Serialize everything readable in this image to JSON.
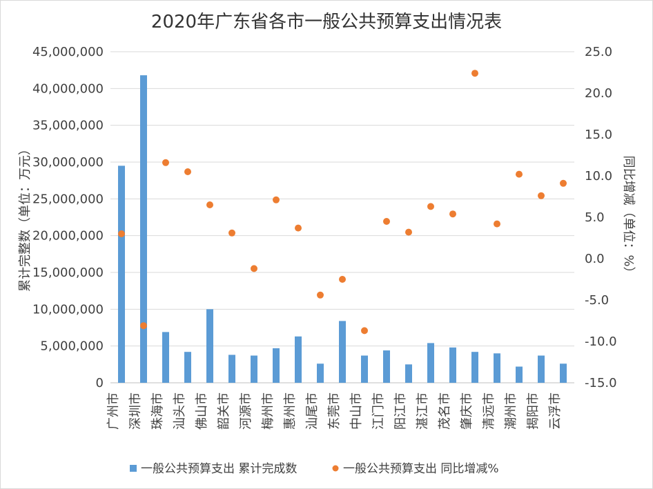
{
  "chart_data": {
    "type": "bar+scatter",
    "title": "2020年广东省各市一般公共预算支出情况表",
    "categories": [
      "广州市",
      "深圳市",
      "珠海市",
      "汕头市",
      "佛山市",
      "韶关市",
      "河源市",
      "梅州市",
      "惠州市",
      "汕尾市",
      "东莞市",
      "中山市",
      "江门市",
      "阳江市",
      "湛江市",
      "茂名市",
      "肇庆市",
      "清远市",
      "潮州市",
      "揭阳市",
      "云浮市"
    ],
    "series": [
      {
        "name": "一般公共预算支出 累计完成数",
        "type": "bar",
        "axis": "left",
        "color": "#5B9BD5",
        "values": [
          29500000,
          41800000,
          6900000,
          4200000,
          10000000,
          3800000,
          3700000,
          4700000,
          6300000,
          2600000,
          8400000,
          3700000,
          4400000,
          2500000,
          5400000,
          4800000,
          4200000,
          4000000,
          2200000,
          3700000,
          2600000
        ]
      },
      {
        "name": "一般公共预算支出 同比增减%",
        "type": "scatter",
        "axis": "right",
        "color": "#ED7D31",
        "values": [
          3.0,
          -8.1,
          11.6,
          10.5,
          6.5,
          3.1,
          -1.2,
          7.1,
          3.7,
          -4.4,
          -2.5,
          -8.7,
          4.5,
          3.2,
          6.3,
          5.4,
          22.4,
          4.2,
          10.2,
          7.6,
          9.1
        ]
      }
    ],
    "ylabel": "累计完整数（单位：万元）",
    "y2label": "同比增减（单位：%）",
    "ylim": [
      0,
      45000000
    ],
    "y2lim": [
      -15,
      25
    ],
    "yticks": [
      "45,000,000",
      "40,000,000",
      "35,000,000",
      "30,000,000",
      "25,000,000",
      "20,000,000",
      "15,000,000",
      "10,000,000",
      "5,000,000",
      "0"
    ],
    "y2ticks": [
      "25.0",
      "20.0",
      "15.0",
      "10.0",
      "5.0",
      "0.0",
      "-5.0",
      "-10.0",
      "-15.0"
    ],
    "grid": true,
    "legend_position": "bottom"
  }
}
